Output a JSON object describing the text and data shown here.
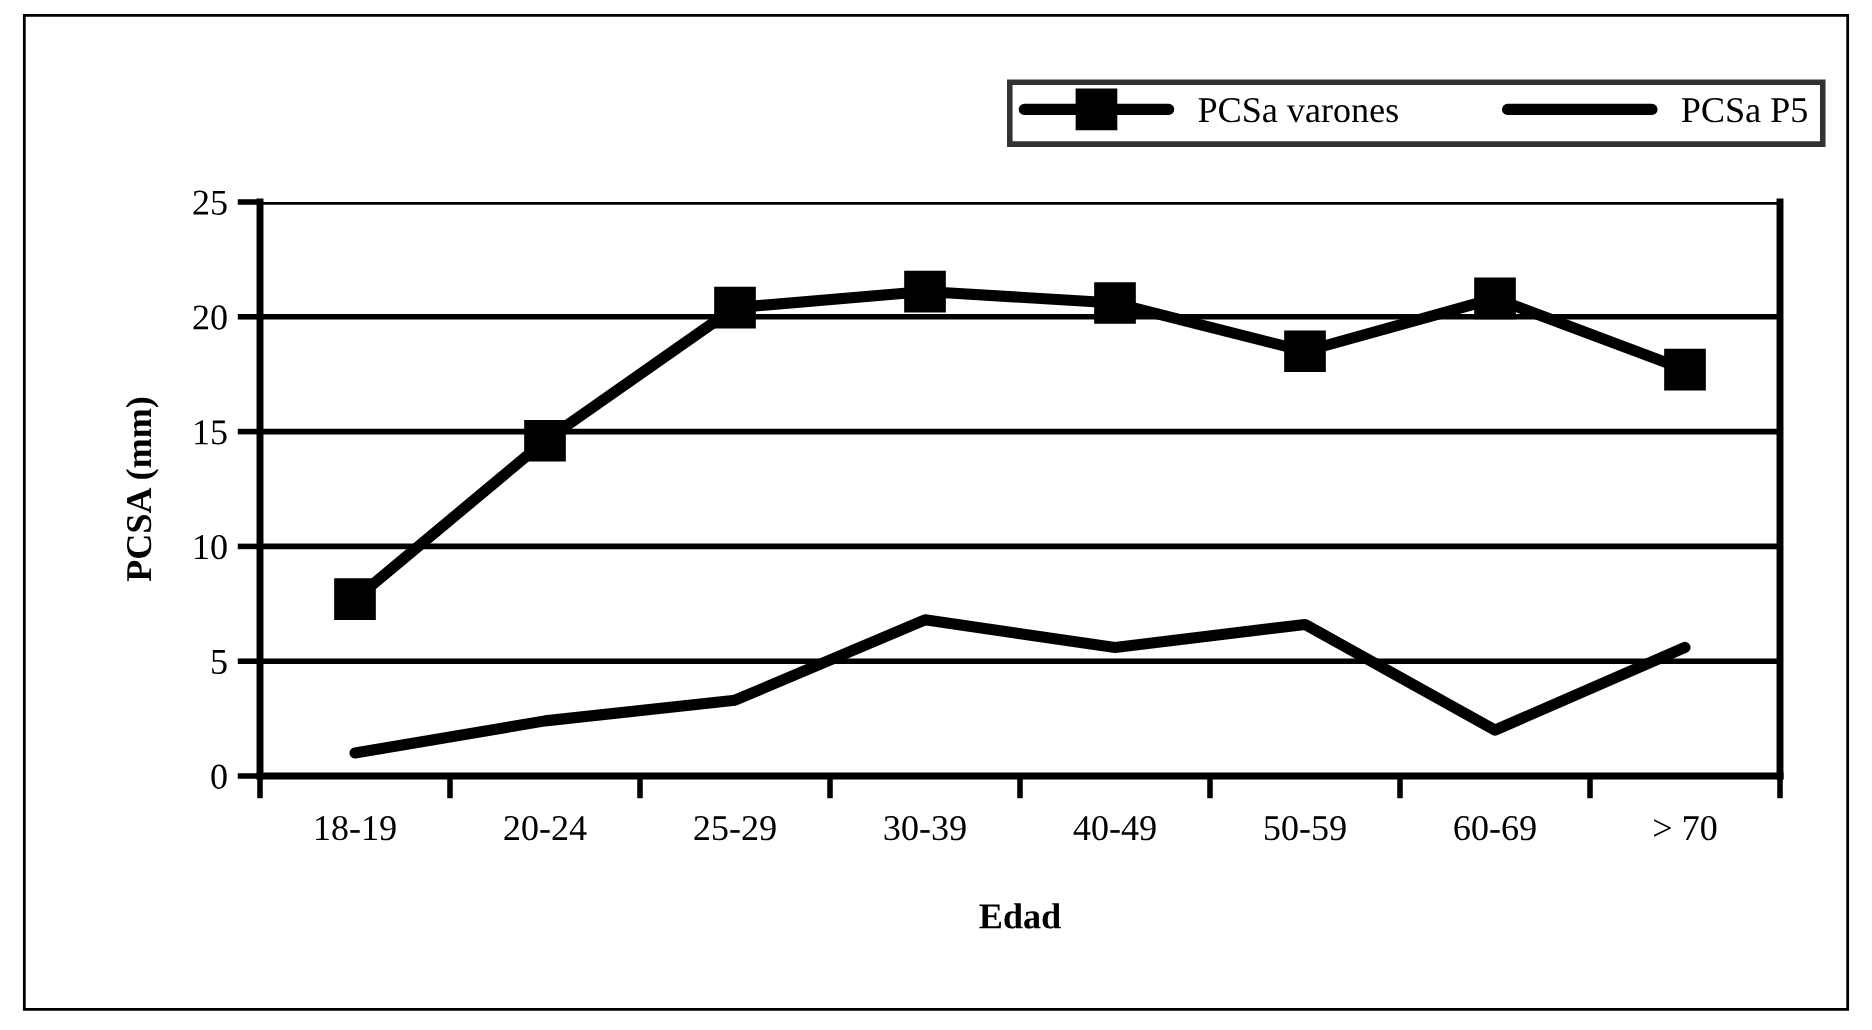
{
  "chart_data": {
    "type": "line",
    "xlabel": "Edad",
    "ylabel": "PCSA (mm)",
    "categories": [
      "18-19",
      "20-24",
      "25-29",
      "30-39",
      "40-49",
      "50-59",
      "60-69",
      "> 70"
    ],
    "series": [
      {
        "name": "PCSa varones",
        "color": "#000000",
        "marker": "square",
        "values": [
          7.7,
          14.6,
          20.4,
          21.1,
          20.6,
          18.5,
          20.8,
          17.7
        ]
      },
      {
        "name": "PCSa P5",
        "color": "#000000",
        "marker": "none",
        "values": [
          1.0,
          2.4,
          3.3,
          6.8,
          5.6,
          6.6,
          2.0,
          5.6
        ]
      }
    ],
    "ylim": [
      0,
      25
    ],
    "yticks": [
      0,
      5,
      10,
      15,
      20,
      25
    ],
    "grid": "y",
    "legend": "top right",
    "line_style": "solid"
  }
}
